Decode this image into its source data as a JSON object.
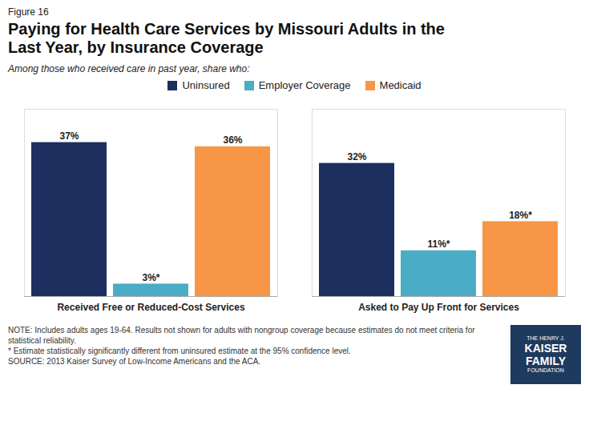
{
  "chart_data": {
    "type": "bar",
    "title": "Paying for Health Care Services by Missouri Adults in the\nLast Year, by Insurance Coverage",
    "subtitle": "Among those who received care in past year, share who:",
    "categories": [
      "Received Free or Reduced-Cost Services",
      "Asked to Pay Up Front for Services"
    ],
    "series": [
      {
        "name": "Uninsured",
        "color": "#1c2f5e",
        "values": [
          37,
          32
        ],
        "value_labels": [
          "37%",
          "32%"
        ]
      },
      {
        "name": "Employer Coverage",
        "color": "#4bacc6",
        "values": [
          3,
          11
        ],
        "value_labels": [
          "3%*",
          "11%*"
        ]
      },
      {
        "name": "Medicaid",
        "color": "#f79646",
        "values": [
          36,
          18
        ],
        "value_labels": [
          "36%",
          "18%*"
        ]
      }
    ],
    "ylim": [
      0,
      45
    ],
    "tick_labels": "x",
    "data_labels": true,
    "grid": false,
    "legend": "top",
    "annotations": [
      "Figure 16",
      "NOTE: Includes adults ages 19-64. Results not shown for adults with nongroup coverage because estimates do not meet criteria for",
      "statistical reliability.",
      "* Estimate statistically significantly different from uninsured estimate  at the 95% confidence level.",
      "SOURCE: 2013 Kaiser Survey of Low-Income Americans and the ACA.",
      "THE HENRY J.",
      "KAISER",
      "FAMILY",
      "FOUNDATION"
    ]
  }
}
